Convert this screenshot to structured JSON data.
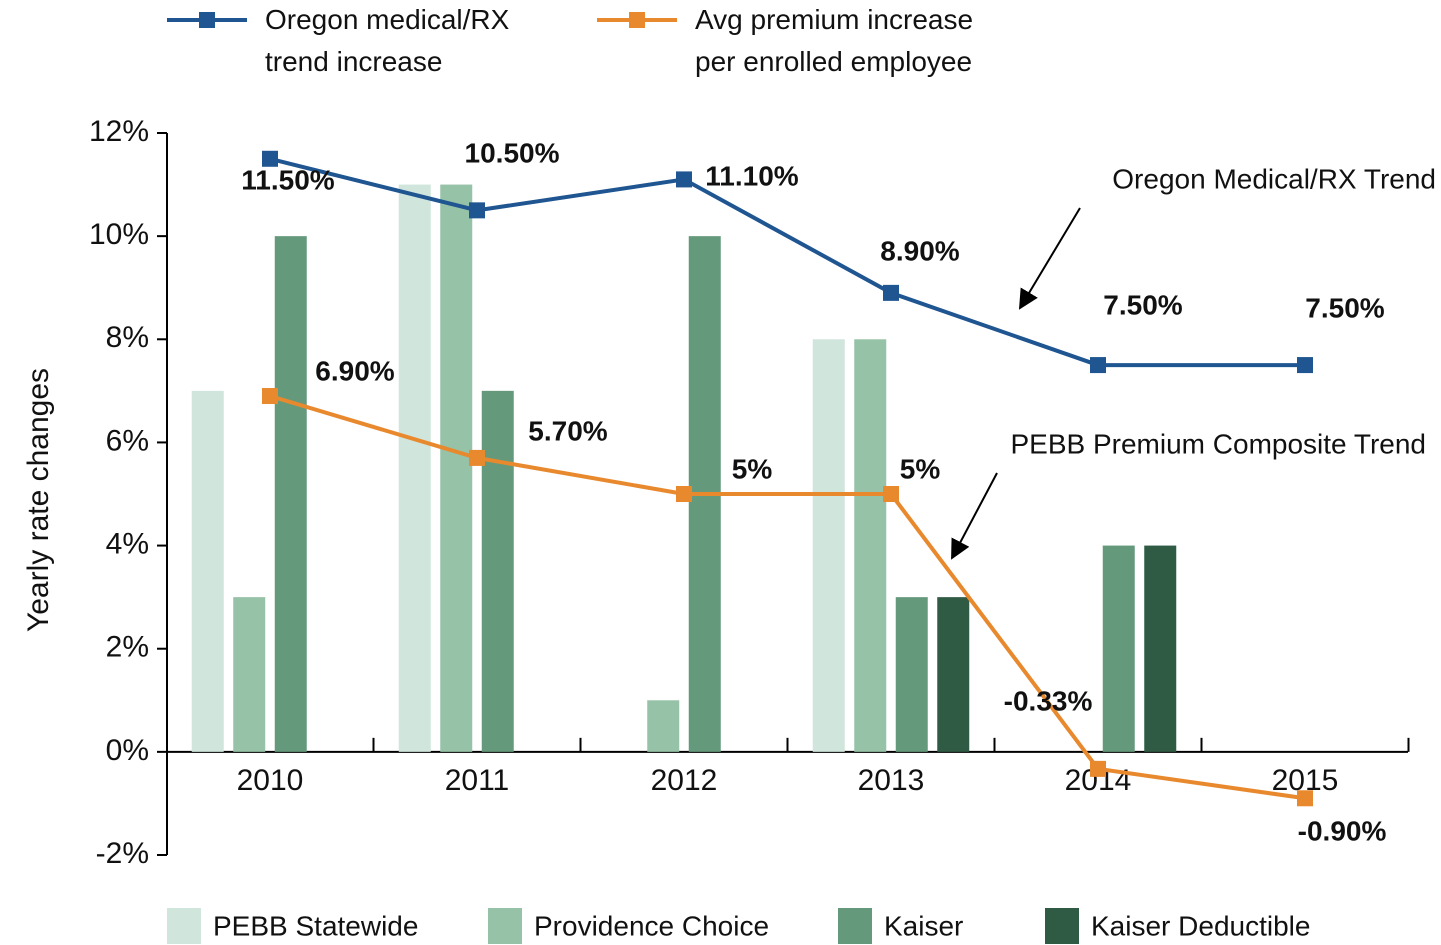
{
  "chart_data": {
    "type": "bar",
    "y_label": "Yearly rate changes",
    "categories": [
      "2010",
      "2011",
      "2012",
      "2013",
      "2014",
      "2015"
    ],
    "ylim": [
      -2,
      12
    ],
    "yticks": [
      {
        "value": -2,
        "label": "-2%"
      },
      {
        "value": 0,
        "label": "0%"
      },
      {
        "value": 2,
        "label": "2%"
      },
      {
        "value": 4,
        "label": "4%"
      },
      {
        "value": 6,
        "label": "6%"
      },
      {
        "value": 8,
        "label": "8%"
      },
      {
        "value": 10,
        "label": "10%"
      },
      {
        "value": 12,
        "label": "12%"
      }
    ],
    "series": [
      {
        "name": "PEBB Statewide",
        "type": "bar",
        "color": "#d0e5dc",
        "values": [
          7,
          11,
          null,
          8,
          null,
          null
        ]
      },
      {
        "name": "Providence Choice",
        "type": "bar",
        "color": "#96c2a8",
        "values": [
          3,
          11,
          1,
          8,
          null,
          null
        ]
      },
      {
        "name": "Kaiser",
        "type": "bar",
        "color": "#65997c",
        "values": [
          10,
          7,
          10,
          3,
          4,
          null
        ]
      },
      {
        "name": "Kaiser Deductible",
        "type": "bar",
        "color": "#2f5b45",
        "values": [
          null,
          null,
          null,
          3,
          4,
          null
        ]
      },
      {
        "name": "Oregon medical/RX trend increase",
        "type": "line",
        "color": "#1f5591",
        "values": [
          11.5,
          10.5,
          11.1,
          8.9,
          7.5,
          7.5
        ],
        "value_labels": [
          "11.50%",
          "10.50%",
          "11.10%",
          "8.90%",
          "7.50%",
          "7.50%"
        ]
      },
      {
        "name": "Avg premium increase per enrolled employee",
        "type": "line",
        "color": "#e8892e",
        "values": [
          6.9,
          5.7,
          5,
          5,
          -0.33,
          -0.9
        ],
        "value_labels": [
          "6.90%",
          "5.70%",
          "5%",
          "5%",
          "-0.33%",
          "-0.90%"
        ]
      }
    ],
    "annotations": [
      "Oregon Medical/RX Trend",
      "PEBB Premium Composite Trend"
    ]
  }
}
